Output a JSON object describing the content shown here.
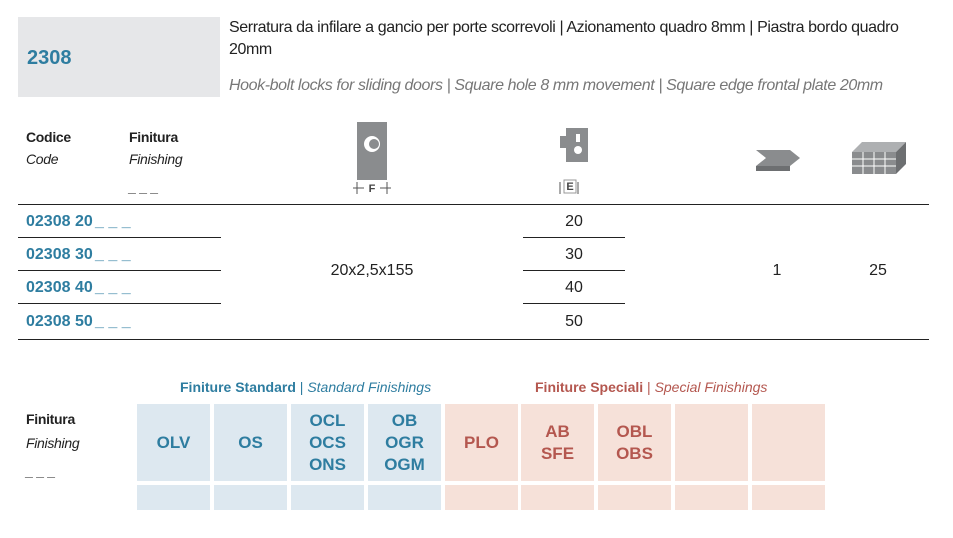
{
  "header": {
    "code": "2308",
    "title_it": "Serratura da infilare a gancio per porte scorrevoli | Azionamento quadro 8mm | Piastra bordo quadro 20mm",
    "title_en": "Hook-bolt locks for sliding doors | Square hole 8 mm movement | Square edge frontal plate 20mm"
  },
  "table": {
    "headers": {
      "code_it": "Codice",
      "code_en": "Code",
      "finish_it": "Finitura",
      "finish_en": "Finishing",
      "finish_blank": "_ _ _",
      "front_icon_label": "F",
      "backset_icon_label": "E"
    },
    "rows": [
      {
        "code": "02308 20",
        "blank": "_ _ _",
        "backset": 20
      },
      {
        "code": "02308 30",
        "blank": "_ _ _",
        "backset": 30
      },
      {
        "code": "02308 40",
        "blank": "_ _ _",
        "backset": 40
      },
      {
        "code": "02308 50",
        "blank": "_ _ _",
        "backset": 50
      }
    ],
    "front": "20x2,5x155",
    "pieces": 1,
    "box": 25
  },
  "finishes": {
    "label_it": "Finitura",
    "label_en": "Finishing",
    "blank": "_ _ _",
    "separator": "|",
    "standard_it": "Finiture Standard",
    "standard_en": "Standard Finishings",
    "special_it": "Finiture Speciali",
    "special_en": "Special Finishings",
    "standard": [
      [
        "OLV"
      ],
      [
        "OS"
      ],
      [
        "OCL",
        "OCS",
        "ONS"
      ],
      [
        "OB",
        "OGR",
        "OGM"
      ]
    ],
    "special": [
      [
        "PLO"
      ],
      [
        "AB",
        "SFE"
      ],
      [
        "OBL",
        "OBS"
      ]
    ]
  }
}
